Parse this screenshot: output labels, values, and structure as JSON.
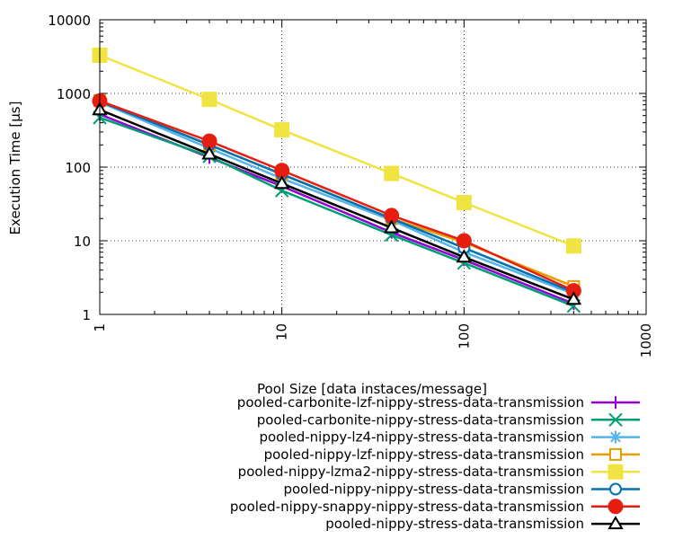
{
  "chart_data": {
    "type": "line",
    "title": "",
    "xlabel": "Pool Size [data instaces/message]",
    "ylabel": "Execution Time [µs]",
    "x_scale": "log",
    "y_scale": "log",
    "xlim": [
      1,
      1000
    ],
    "ylim": [
      1,
      10000
    ],
    "x_ticks": [
      1,
      10,
      100,
      1000
    ],
    "y_ticks": [
      1,
      10,
      100,
      1000,
      10000
    ],
    "x_tick_labels": [
      "1",
      "10",
      "100",
      "1000"
    ],
    "y_tick_labels": [
      "1",
      "10",
      "100",
      "1000",
      "10000"
    ],
    "grid": true,
    "legend_position": "bottom",
    "x": [
      1,
      4,
      10,
      40,
      100,
      400
    ],
    "series": [
      {
        "name": "pooled-carbonite-lzf-nippy-stress-data-transmission",
        "color": "#9400d3",
        "marker": "plus",
        "values": [
          520,
          135,
          55,
          13,
          5.5,
          1.4
        ]
      },
      {
        "name": "pooled-carbonite-nippy-stress-data-transmission",
        "color": "#009e73",
        "marker": "x",
        "values": [
          470,
          140,
          48,
          12,
          5.0,
          1.3
        ]
      },
      {
        "name": "pooled-nippy-lz4-nippy-stress-data-transmission",
        "color": "#56b4e9",
        "marker": "star",
        "values": [
          760,
          180,
          70,
          19,
          7.0,
          1.9
        ]
      },
      {
        "name": "pooled-nippy-lzf-nippy-stress-data-transmission",
        "color": "#e69f00",
        "marker": "open-square",
        "values": [
          800,
          200,
          80,
          20,
          9.5,
          2.4
        ]
      },
      {
        "name": "pooled-nippy-lzma2-nippy-stress-data-transmission",
        "color": "#f0e442",
        "marker": "filled-square",
        "values": [
          3300,
          830,
          320,
          82,
          33,
          8.5
        ]
      },
      {
        "name": "pooled-nippy-nippy-stress-data-transmission",
        "color": "#0072b2",
        "marker": "open-circle",
        "values": [
          780,
          200,
          80,
          20,
          8.0,
          2.0
        ]
      },
      {
        "name": "pooled-nippy-snappy-nippy-stress-data-transmission",
        "color": "#e51e10",
        "marker": "filled-circle",
        "values": [
          790,
          225,
          90,
          22,
          10,
          2.1
        ]
      },
      {
        "name": "pooled-nippy-stress-data-transmission",
        "color": "#000000",
        "marker": "open-triangle",
        "values": [
          600,
          150,
          60,
          15,
          6.0,
          1.6
        ]
      }
    ]
  }
}
